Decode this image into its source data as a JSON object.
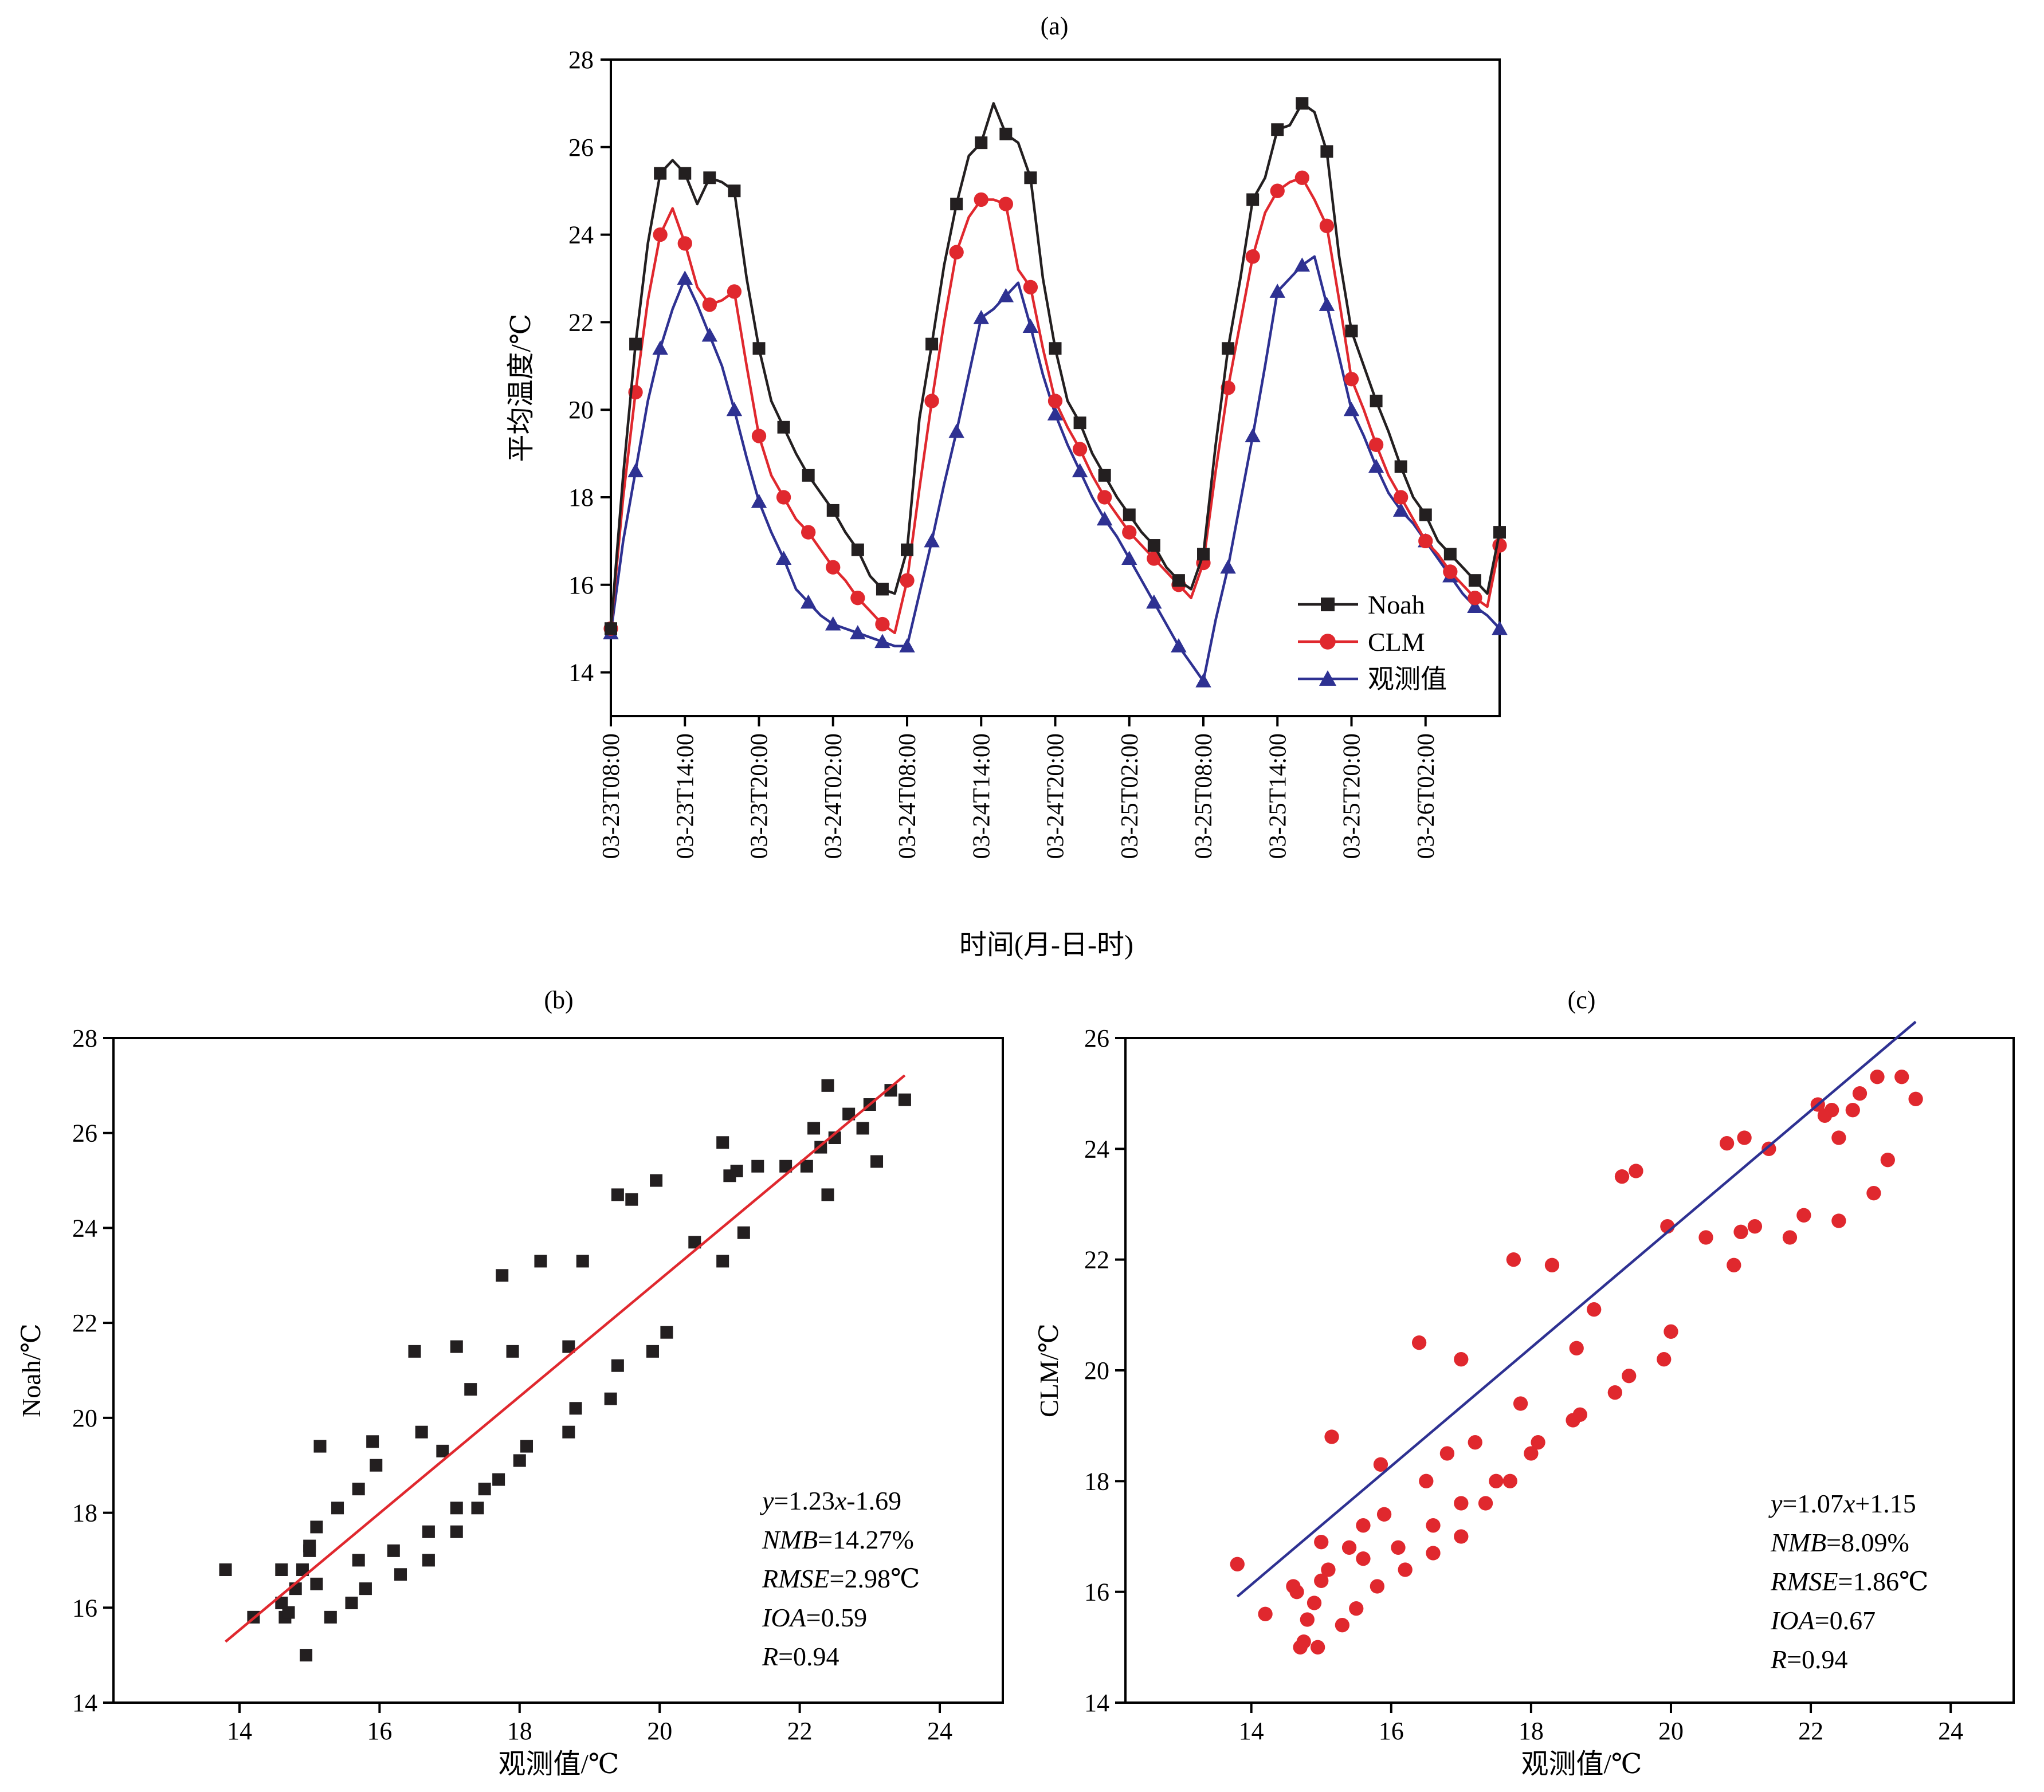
{
  "colors": {
    "noah": "#231f20",
    "clm": "#e0282e",
    "obs": "#2e3192",
    "fit_b": "#e0282e",
    "fit_c": "#2e3192",
    "axis": "#000000"
  },
  "icons": {
    "noah_marker": "square",
    "clm_marker": "circle",
    "obs_marker": "triangle"
  },
  "chart_data": [
    {
      "id": "a",
      "type": "line",
      "title": "(a)",
      "xlabel": "时间(月-日-时)",
      "ylabel": "平均温度/℃",
      "x": [
        0,
        1,
        2,
        3,
        4,
        5,
        6,
        7,
        8,
        9,
        10,
        11,
        12,
        13,
        14,
        15,
        16,
        17,
        18,
        19,
        20,
        21,
        22,
        23,
        24,
        25,
        26,
        27,
        28,
        29,
        30,
        31,
        32,
        33,
        34,
        35,
        36,
        37,
        38,
        39,
        40,
        41,
        42,
        43,
        44,
        45,
        46,
        47,
        48,
        49,
        50,
        51,
        52,
        53,
        54,
        55,
        56,
        57,
        58,
        59,
        60,
        61,
        62,
        63,
        64,
        65,
        66,
        67,
        68,
        69,
        70,
        71,
        72
      ],
      "xlim": [
        0,
        72
      ],
      "xticks": [
        {
          "x": 0,
          "label": "03-23T08:00"
        },
        {
          "x": 6,
          "label": "03-23T14:00"
        },
        {
          "x": 12,
          "label": "03-23T20:00"
        },
        {
          "x": 18,
          "label": "03-24T02:00"
        },
        {
          "x": 24,
          "label": "03-24T08:00"
        },
        {
          "x": 30,
          "label": "03-24T14:00"
        },
        {
          "x": 36,
          "label": "03-24T20:00"
        },
        {
          "x": 42,
          "label": "03-25T02:00"
        },
        {
          "x": 48,
          "label": "03-25T08:00"
        },
        {
          "x": 54,
          "label": "03-25T14:00"
        },
        {
          "x": 60,
          "label": "03-25T20:00"
        },
        {
          "x": 66,
          "label": "03-26T02:00"
        }
      ],
      "ylim": [
        13,
        28
      ],
      "yticks": [
        14,
        16,
        18,
        20,
        22,
        24,
        26,
        28
      ],
      "legend": "bottom-right",
      "series": [
        {
          "name": "Noah",
          "marker": "square",
          "values": [
            15.0,
            18.5,
            21.5,
            23.8,
            25.4,
            25.7,
            25.4,
            24.7,
            25.3,
            25.2,
            25.0,
            23.0,
            21.4,
            20.2,
            19.6,
            19.0,
            18.5,
            18.1,
            17.7,
            17.2,
            16.8,
            16.2,
            15.9,
            15.8,
            16.8,
            19.8,
            21.5,
            23.3,
            24.7,
            25.8,
            26.1,
            27.0,
            26.3,
            26.1,
            25.3,
            23.0,
            21.4,
            20.2,
            19.7,
            19.0,
            18.5,
            18.0,
            17.6,
            17.2,
            16.9,
            16.4,
            16.1,
            15.9,
            16.7,
            19.2,
            21.4,
            23.0,
            24.8,
            25.3,
            26.4,
            26.5,
            27.0,
            26.8,
            25.9,
            23.5,
            21.8,
            21.0,
            20.2,
            19.5,
            18.7,
            18.0,
            17.6,
            17.0,
            16.7,
            16.4,
            16.1,
            15.8,
            17.2
          ]
        },
        {
          "name": "CLM",
          "marker": "circle",
          "values": [
            15.0,
            18.0,
            20.4,
            22.5,
            24.0,
            24.6,
            23.8,
            22.8,
            22.4,
            22.5,
            22.7,
            21.0,
            19.4,
            18.5,
            18.0,
            17.5,
            17.2,
            16.8,
            16.4,
            16.1,
            15.7,
            15.4,
            15.1,
            14.9,
            16.1,
            18.2,
            20.2,
            22.0,
            23.6,
            24.4,
            24.8,
            24.8,
            24.7,
            23.2,
            22.8,
            21.4,
            20.2,
            19.6,
            19.1,
            18.5,
            18.0,
            17.6,
            17.2,
            16.9,
            16.6,
            16.3,
            16.0,
            15.7,
            16.5,
            18.6,
            20.5,
            22.0,
            23.5,
            24.5,
            25.0,
            25.2,
            25.3,
            24.8,
            24.2,
            22.5,
            20.7,
            20.0,
            19.2,
            18.5,
            18.0,
            17.5,
            17.0,
            16.7,
            16.3,
            16.0,
            15.7,
            15.5,
            16.9
          ]
        },
        {
          "name": "观测值",
          "marker": "triangle",
          "values": [
            14.9,
            17.0,
            18.6,
            20.2,
            21.4,
            22.3,
            23.0,
            22.4,
            21.7,
            21.0,
            20.0,
            18.9,
            17.9,
            17.2,
            16.6,
            15.9,
            15.6,
            15.3,
            15.1,
            15.0,
            14.9,
            14.8,
            14.7,
            14.6,
            14.6,
            15.8,
            17.0,
            18.3,
            19.5,
            20.8,
            22.1,
            22.3,
            22.6,
            22.9,
            21.9,
            20.8,
            19.9,
            19.2,
            18.6,
            18.0,
            17.5,
            17.1,
            16.6,
            16.1,
            15.6,
            15.1,
            14.6,
            14.2,
            13.8,
            15.2,
            16.4,
            17.9,
            19.4,
            21.0,
            22.7,
            23.0,
            23.3,
            23.5,
            22.4,
            21.2,
            20.0,
            19.4,
            18.7,
            18.1,
            17.7,
            17.4,
            17.0,
            16.6,
            16.2,
            15.8,
            15.5,
            15.3,
            15.0
          ]
        }
      ]
    },
    {
      "id": "b",
      "type": "scatter",
      "title": "(b)",
      "xlabel": "观测值/℃",
      "ylabel": "Noah/℃",
      "xlim": [
        12.2,
        24.9
      ],
      "xticks": [
        14,
        16,
        18,
        20,
        22,
        24
      ],
      "ylim": [
        14,
        28
      ],
      "yticks": [
        14,
        16,
        18,
        20,
        22,
        24,
        26,
        28
      ],
      "fit": {
        "slope": 1.23,
        "intercept": -1.69,
        "x_range": [
          13.8,
          23.5
        ]
      },
      "annotations": [
        "y=1.23x-1.69",
        "NMB=14.27%",
        "RMSE=2.98℃",
        "IOA=0.59",
        "R=0.94"
      ],
      "points": [
        [
          13.8,
          16.8
        ],
        [
          14.2,
          15.8
        ],
        [
          14.6,
          16.8
        ],
        [
          14.6,
          16.1
        ],
        [
          14.65,
          15.8
        ],
        [
          14.7,
          15.9
        ],
        [
          14.8,
          16.4
        ],
        [
          14.9,
          16.8
        ],
        [
          14.95,
          15.0
        ],
        [
          15.0,
          17.2
        ],
        [
          15.0,
          17.3
        ],
        [
          15.1,
          17.7
        ],
        [
          15.1,
          16.5
        ],
        [
          15.15,
          19.4
        ],
        [
          15.3,
          15.8
        ],
        [
          15.4,
          18.1
        ],
        [
          15.6,
          16.1
        ],
        [
          15.7,
          18.5
        ],
        [
          15.7,
          17.0
        ],
        [
          15.8,
          16.4
        ],
        [
          15.9,
          19.5
        ],
        [
          15.95,
          19.0
        ],
        [
          16.2,
          17.2
        ],
        [
          16.3,
          16.7
        ],
        [
          16.5,
          21.4
        ],
        [
          16.6,
          19.7
        ],
        [
          16.7,
          17.6
        ],
        [
          16.7,
          17.0
        ],
        [
          16.9,
          19.3
        ],
        [
          17.1,
          21.5
        ],
        [
          17.1,
          18.1
        ],
        [
          17.1,
          17.6
        ],
        [
          17.3,
          20.6
        ],
        [
          17.4,
          18.1
        ],
        [
          17.5,
          18.5
        ],
        [
          17.7,
          18.7
        ],
        [
          17.75,
          23.0
        ],
        [
          17.9,
          21.4
        ],
        [
          18.0,
          19.1
        ],
        [
          18.1,
          19.4
        ],
        [
          18.3,
          23.3
        ],
        [
          18.7,
          21.5
        ],
        [
          18.7,
          19.7
        ],
        [
          18.8,
          20.2
        ],
        [
          18.9,
          23.3
        ],
        [
          19.3,
          20.4
        ],
        [
          19.4,
          21.1
        ],
        [
          19.4,
          24.7
        ],
        [
          19.6,
          24.6
        ],
        [
          19.9,
          21.4
        ],
        [
          19.95,
          25.0
        ],
        [
          20.1,
          21.8
        ],
        [
          20.5,
          23.7
        ],
        [
          20.9,
          25.8
        ],
        [
          20.9,
          23.3
        ],
        [
          21.0,
          25.1
        ],
        [
          21.1,
          25.2
        ],
        [
          21.2,
          23.9
        ],
        [
          21.4,
          25.3
        ],
        [
          21.8,
          25.3
        ],
        [
          22.1,
          25.3
        ],
        [
          22.2,
          26.1
        ],
        [
          22.3,
          25.7
        ],
        [
          22.4,
          27.0
        ],
        [
          22.4,
          24.7
        ],
        [
          22.5,
          25.9
        ],
        [
          22.7,
          26.4
        ],
        [
          22.9,
          26.1
        ],
        [
          23.0,
          26.6
        ],
        [
          23.1,
          25.4
        ],
        [
          23.3,
          26.9
        ],
        [
          23.5,
          26.7
        ]
      ]
    },
    {
      "id": "c",
      "type": "scatter",
      "title": "(c)",
      "xlabel": "观测值/℃",
      "ylabel": "CLM/℃",
      "xlim": [
        12.2,
        24.9
      ],
      "xticks": [
        14,
        16,
        18,
        20,
        22,
        24
      ],
      "ylim": [
        14,
        26
      ],
      "yticks": [
        14,
        16,
        18,
        20,
        22,
        24,
        26
      ],
      "fit": {
        "slope": 1.07,
        "intercept": 1.15,
        "x_range": [
          13.8,
          23.5
        ]
      },
      "annotations": [
        "y=1.07x+1.15",
        "NMB=8.09%",
        "RMSE=1.86℃",
        "IOA=0.67",
        "R=0.94"
      ],
      "points": [
        [
          13.8,
          16.5
        ],
        [
          14.2,
          15.6
        ],
        [
          14.6,
          16.1
        ],
        [
          14.65,
          16.0
        ],
        [
          14.7,
          15.0
        ],
        [
          14.75,
          15.1
        ],
        [
          14.8,
          15.5
        ],
        [
          14.9,
          15.8
        ],
        [
          14.95,
          15.0
        ],
        [
          15.0,
          16.2
        ],
        [
          15.0,
          16.9
        ],
        [
          15.1,
          16.4
        ],
        [
          15.15,
          18.8
        ],
        [
          15.3,
          15.4
        ],
        [
          15.4,
          16.8
        ],
        [
          15.5,
          15.7
        ],
        [
          15.6,
          16.6
        ],
        [
          15.6,
          17.2
        ],
        [
          15.8,
          16.1
        ],
        [
          15.85,
          18.3
        ],
        [
          15.9,
          17.4
        ],
        [
          16.1,
          16.8
        ],
        [
          16.2,
          16.4
        ],
        [
          16.4,
          20.5
        ],
        [
          16.5,
          18.0
        ],
        [
          16.6,
          17.2
        ],
        [
          16.6,
          16.7
        ],
        [
          16.8,
          18.5
        ],
        [
          17.0,
          20.2
        ],
        [
          17.0,
          17.6
        ],
        [
          17.0,
          17.0
        ],
        [
          17.2,
          18.7
        ],
        [
          17.35,
          17.6
        ],
        [
          17.5,
          18.0
        ],
        [
          17.7,
          18.0
        ],
        [
          17.75,
          22.0
        ],
        [
          17.85,
          19.4
        ],
        [
          18.0,
          18.5
        ],
        [
          18.1,
          18.7
        ],
        [
          18.3,
          21.9
        ],
        [
          18.6,
          19.1
        ],
        [
          18.65,
          20.4
        ],
        [
          18.7,
          19.2
        ],
        [
          18.9,
          21.1
        ],
        [
          19.2,
          19.6
        ],
        [
          19.3,
          23.5
        ],
        [
          19.4,
          19.9
        ],
        [
          19.5,
          23.6
        ],
        [
          19.9,
          20.2
        ],
        [
          19.95,
          22.6
        ],
        [
          20.0,
          20.7
        ],
        [
          20.5,
          22.4
        ],
        [
          20.8,
          24.1
        ],
        [
          20.9,
          21.9
        ],
        [
          21.0,
          22.5
        ],
        [
          21.05,
          24.2
        ],
        [
          21.2,
          22.6
        ],
        [
          21.4,
          24.0
        ],
        [
          21.7,
          22.4
        ],
        [
          21.9,
          22.8
        ],
        [
          22.1,
          24.8
        ],
        [
          22.2,
          24.6
        ],
        [
          22.3,
          24.7
        ],
        [
          22.4,
          22.7
        ],
        [
          22.4,
          24.2
        ],
        [
          22.6,
          24.7
        ],
        [
          22.7,
          25.0
        ],
        [
          22.9,
          23.2
        ],
        [
          22.95,
          25.3
        ],
        [
          23.1,
          23.8
        ],
        [
          23.3,
          25.3
        ],
        [
          23.5,
          24.9
        ]
      ]
    }
  ]
}
